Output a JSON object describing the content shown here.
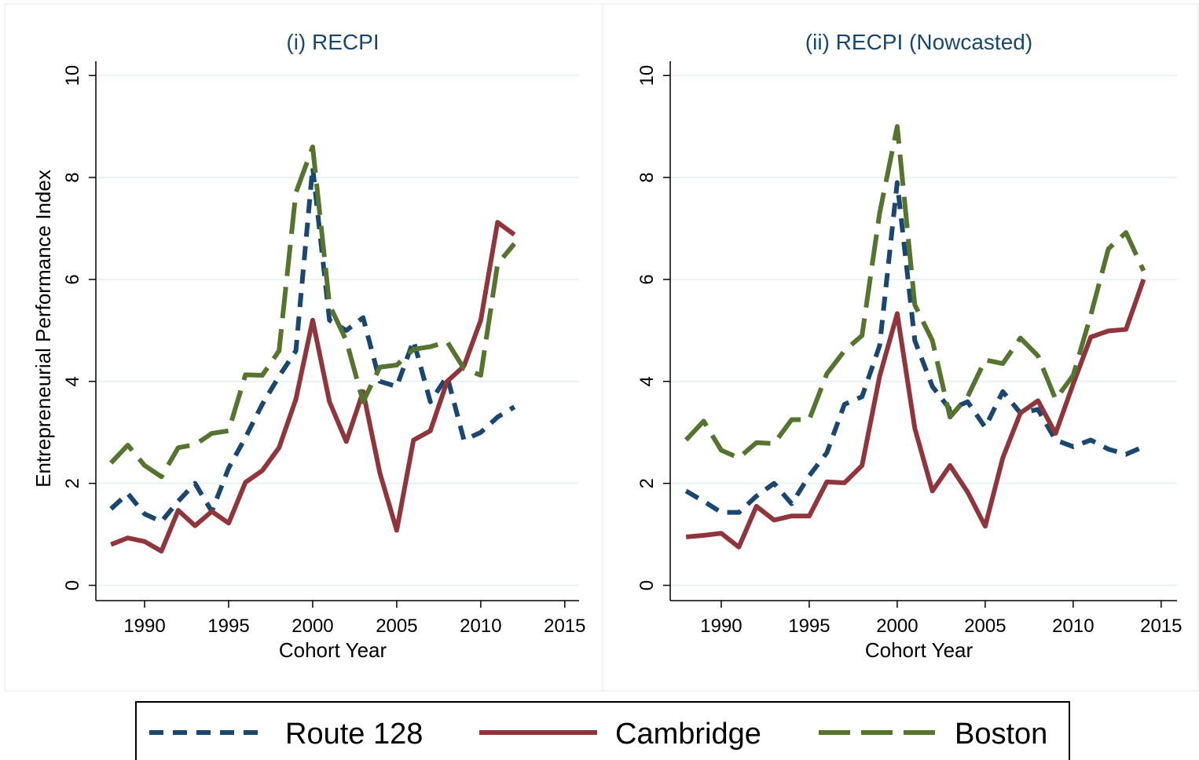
{
  "chart_data": [
    {
      "type": "line",
      "title": "(i) RECPI",
      "x_label": "Cohort Year",
      "y_label": "Entrepreneurial Performance Index",
      "x": [
        1988,
        1989,
        1990,
        1991,
        1992,
        1993,
        1994,
        1995,
        1996,
        1997,
        1998,
        1999,
        2000,
        2001,
        2002,
        2003,
        2004,
        2005,
        2006,
        2007,
        2008,
        2009,
        2010,
        2011,
        2012
      ],
      "series": [
        {
          "name": "Route 128",
          "color": "#1a476f",
          "dash": "short",
          "values": [
            1.5,
            1.8,
            1.4,
            1.25,
            1.65,
            2.0,
            1.45,
            2.3,
            2.9,
            3.55,
            4.1,
            4.6,
            8.2,
            5.2,
            5.0,
            5.25,
            4.0,
            3.9,
            4.8,
            3.6,
            4.1,
            2.85,
            3.0,
            3.3,
            3.5
          ]
        },
        {
          "name": "Cambridge",
          "color": "#90353b",
          "dash": "solid",
          "values": [
            0.8,
            0.93,
            0.86,
            0.67,
            1.47,
            1.17,
            1.45,
            1.22,
            2.02,
            2.25,
            2.7,
            3.65,
            5.2,
            3.6,
            2.82,
            3.8,
            2.2,
            1.08,
            2.85,
            3.03,
            4.0,
            4.3,
            5.2,
            7.12,
            6.88
          ]
        },
        {
          "name": "Boston",
          "color": "#55752f",
          "dash": "long",
          "values": [
            2.4,
            2.75,
            2.35,
            2.13,
            2.7,
            2.76,
            2.98,
            3.03,
            4.13,
            4.12,
            4.6,
            7.7,
            8.6,
            5.5,
            4.8,
            3.6,
            4.28,
            4.32,
            4.63,
            4.68,
            4.78,
            4.25,
            4.12,
            6.3,
            6.7
          ]
        }
      ],
      "xlim": [
        1987.1,
        2015.85
      ],
      "xticks": [
        1990,
        1995,
        2000,
        2005,
        2010,
        2015
      ],
      "ylim": [
        -0.3,
        10.28
      ],
      "yticks": [
        0,
        2,
        4,
        6,
        8,
        10
      ],
      "grid": true
    },
    {
      "type": "line",
      "title": "(ii) RECPI (Nowcasted)",
      "x_label": "Cohort Year",
      "x": [
        1988,
        1989,
        1990,
        1991,
        1992,
        1993,
        1994,
        1995,
        1996,
        1997,
        1998,
        1999,
        2000,
        2001,
        2002,
        2003,
        2004,
        2005,
        2006,
        2007,
        2008,
        2009,
        2010,
        2011,
        2012,
        2013,
        2014
      ],
      "series": [
        {
          "color": "#1a476f",
          "dash": "short",
          "values": [
            1.85,
            1.65,
            1.43,
            1.43,
            1.75,
            2.0,
            1.6,
            2.15,
            2.6,
            3.55,
            3.7,
            4.7,
            7.9,
            4.8,
            3.9,
            3.45,
            3.6,
            3.1,
            3.8,
            3.38,
            3.45,
            2.85,
            2.72,
            2.85,
            2.67,
            2.57,
            2.72
          ]
        },
        {
          "color": "#90353b",
          "dash": "solid",
          "values": [
            0.95,
            0.98,
            1.02,
            0.75,
            1.55,
            1.28,
            1.36,
            1.36,
            2.03,
            2.01,
            2.35,
            4.1,
            5.33,
            3.08,
            1.85,
            2.35,
            1.83,
            1.16,
            2.5,
            3.38,
            3.62,
            2.98,
            3.95,
            4.87,
            4.99,
            5.02,
            6.0
          ]
        },
        {
          "color": "#55752f",
          "dash": "long",
          "values": [
            2.85,
            3.22,
            2.65,
            2.5,
            2.8,
            2.78,
            3.25,
            3.25,
            4.15,
            4.6,
            4.9,
            7.3,
            9.0,
            5.5,
            4.8,
            3.3,
            3.7,
            4.42,
            4.35,
            4.85,
            4.5,
            3.65,
            4.12,
            5.3,
            6.6,
            6.92,
            6.17
          ]
        }
      ],
      "xlim": [
        1987.1,
        2015.9
      ],
      "xticks": [
        1990,
        1995,
        2000,
        2005,
        2010,
        2015
      ],
      "ylim": [
        -0.3,
        10.28
      ],
      "yticks": [
        0,
        2,
        4,
        6,
        8,
        10
      ],
      "grid": true
    }
  ]
}
